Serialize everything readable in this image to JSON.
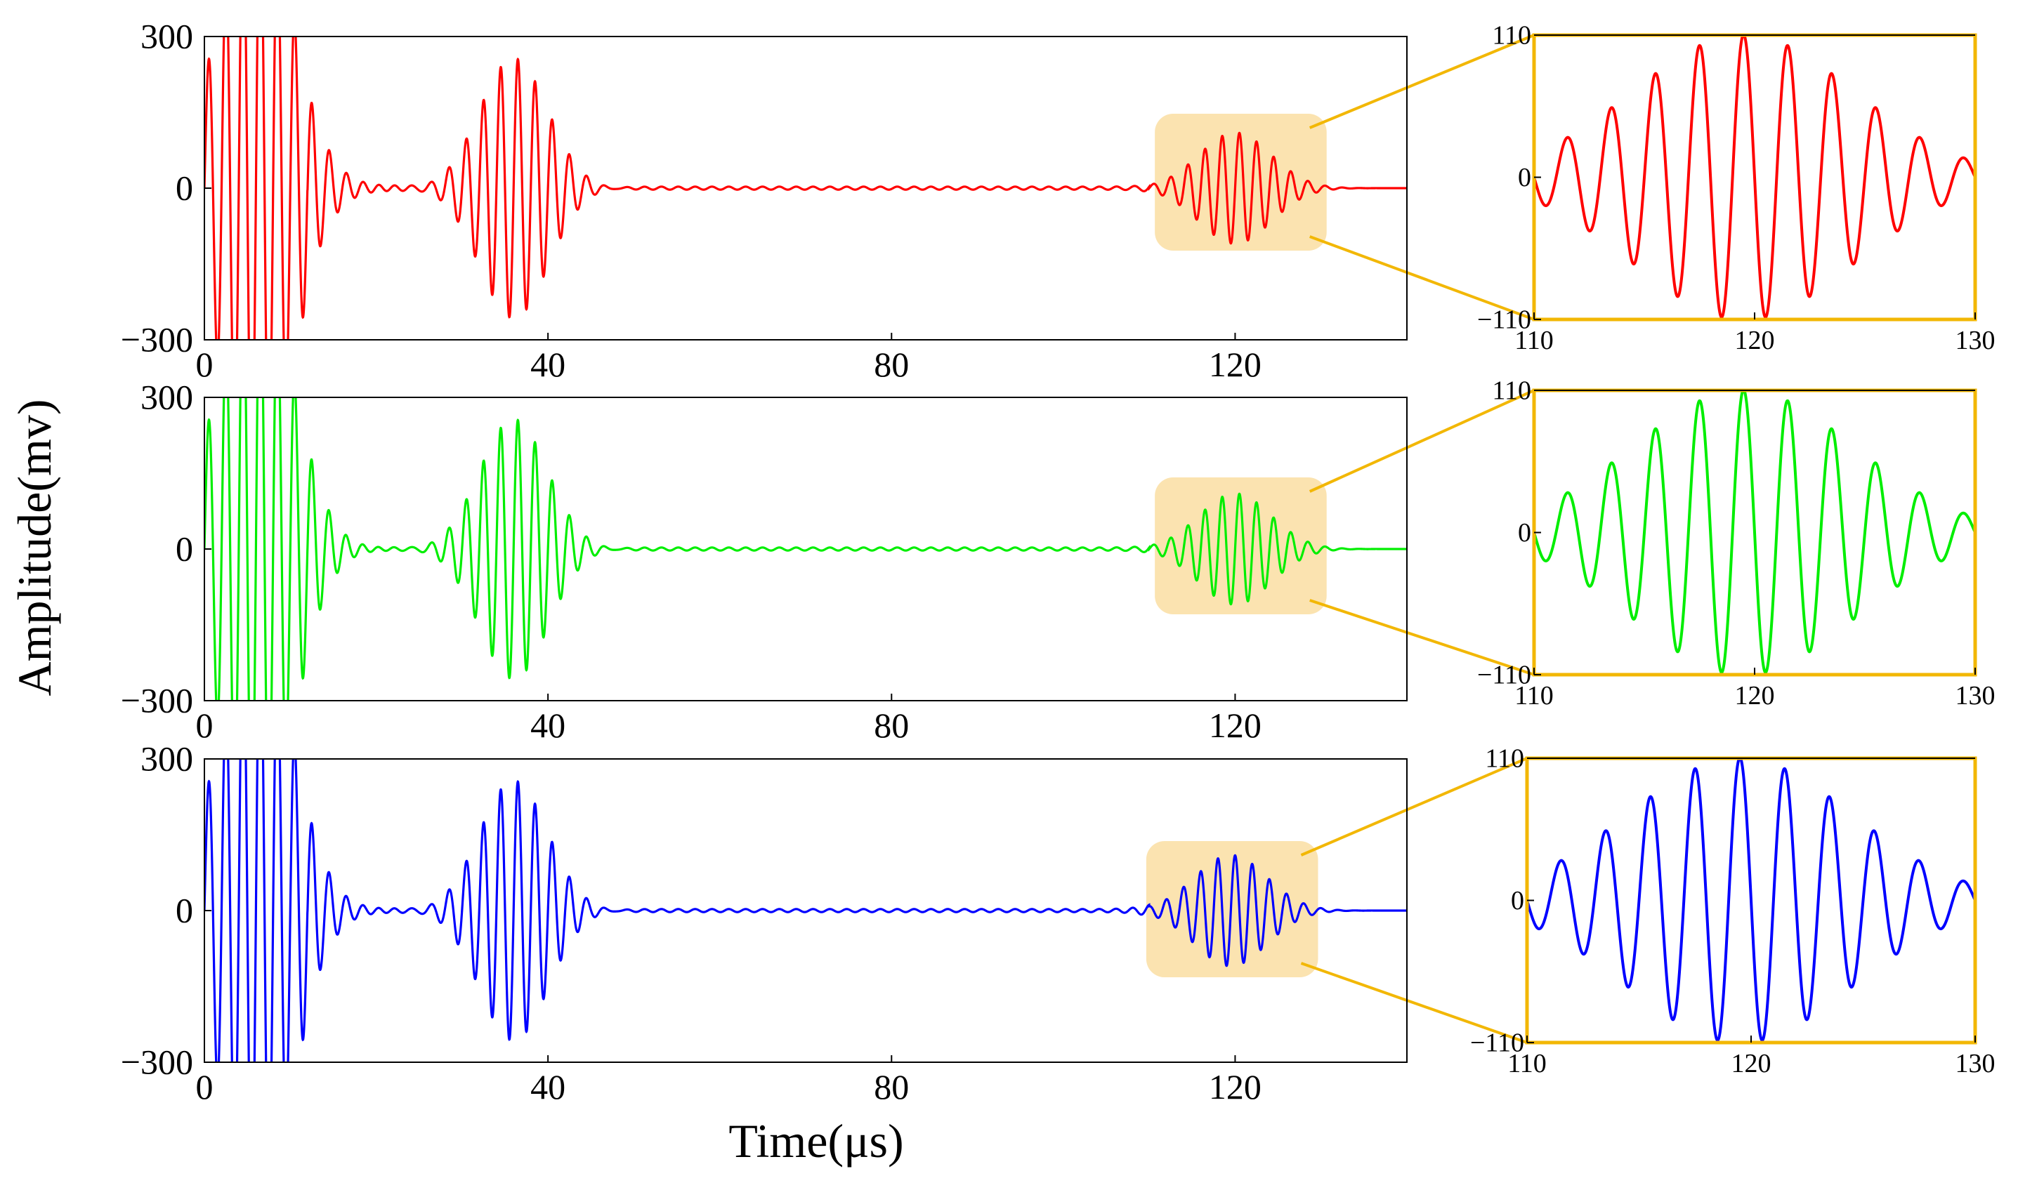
{
  "figure": {
    "ylabel": "Amplitude(mv)",
    "xlabel": "Time(μs)",
    "highlight_color": "#FBE3B0",
    "zoom_frame_color": "#F2B705"
  },
  "chart_data": [
    {
      "type": "line",
      "panel": "main-top",
      "series": [
        {
          "color": "#FF0000",
          "waveform": "ultrasonic echo signal"
        }
      ],
      "xlim": [
        0,
        140
      ],
      "ylim": [
        -300,
        300
      ],
      "xticks": [
        "0",
        "40",
        "80",
        "120"
      ],
      "yticks": [
        "300",
        "0",
        "−300"
      ],
      "xtick_values": [
        0,
        40,
        80,
        120
      ],
      "ytick_values": [
        300,
        0,
        -300
      ],
      "highlight_range": [
        110,
        130
      ],
      "pulses": [
        {
          "center": 6,
          "amplitude": 600,
          "sigma": 4.2
        },
        {
          "center": 36,
          "amplitude": 260,
          "sigma": 4.0
        },
        {
          "center": 120,
          "amplitude": 110,
          "sigma": 4.2
        }
      ],
      "ringing_amplitude": 20
    },
    {
      "type": "line",
      "panel": "zoom-top",
      "series": [
        {
          "color": "#FF0000"
        }
      ],
      "xlim": [
        110,
        130
      ],
      "ylim": [
        -110,
        110
      ],
      "xticks": [
        "110",
        "120",
        "130"
      ],
      "yticks": [
        "110",
        "0",
        "−110"
      ],
      "xtick_values": [
        110,
        120,
        130
      ],
      "ytick_values": [
        110,
        0,
        -110
      ]
    },
    {
      "type": "line",
      "panel": "main-middle",
      "series": [
        {
          "color": "#00EE00",
          "waveform": "ultrasonic echo signal"
        }
      ],
      "xlim": [
        0,
        140
      ],
      "ylim": [
        -300,
        300
      ],
      "xticks": [
        "0",
        "40",
        "80",
        "120"
      ],
      "yticks": [
        "300",
        "0",
        "−300"
      ],
      "xtick_values": [
        0,
        40,
        80,
        120
      ],
      "ytick_values": [
        300,
        0,
        -300
      ],
      "highlight_range": [
        110,
        130
      ],
      "pulses": [
        {
          "center": 6,
          "amplitude": 600,
          "sigma": 4.2
        },
        {
          "center": 36,
          "amplitude": 260,
          "sigma": 4.0
        },
        {
          "center": 120,
          "amplitude": 110,
          "sigma": 4.2
        }
      ],
      "ringing_amplitude": 8
    },
    {
      "type": "line",
      "panel": "zoom-middle",
      "series": [
        {
          "color": "#00EE00"
        }
      ],
      "xlim": [
        110,
        130
      ],
      "ylim": [
        -110,
        110
      ],
      "xticks": [
        "110",
        "120",
        "130"
      ],
      "yticks": [
        "110",
        "0",
        "−110"
      ],
      "xtick_values": [
        110,
        120,
        130
      ],
      "ytick_values": [
        110,
        0,
        -110
      ]
    },
    {
      "type": "line",
      "panel": "main-bottom",
      "series": [
        {
          "color": "#0000FF",
          "waveform": "ultrasonic echo signal"
        }
      ],
      "xlim": [
        0,
        140
      ],
      "ylim": [
        -300,
        300
      ],
      "xticks": [
        "0",
        "40",
        "80",
        "120"
      ],
      "yticks": [
        "300",
        "0",
        "−300"
      ],
      "xtick_values": [
        0,
        40,
        80,
        120
      ],
      "ytick_values": [
        300,
        0,
        -300
      ],
      "highlight_range": [
        109,
        129
      ],
      "pulses": [
        {
          "center": 6,
          "amplitude": 600,
          "sigma": 4.2
        },
        {
          "center": 36,
          "amplitude": 260,
          "sigma": 4.0
        },
        {
          "center": 119.5,
          "amplitude": 110,
          "sigma": 4.2
        }
      ],
      "ringing_amplitude": 14
    },
    {
      "type": "line",
      "panel": "zoom-bottom",
      "series": [
        {
          "color": "#0000FF"
        }
      ],
      "xlim": [
        110,
        130
      ],
      "ylim": [
        -110,
        110
      ],
      "xticks": [
        "110",
        "120",
        "130"
      ],
      "yticks": [
        "110",
        "0",
        "−110"
      ],
      "xtick_values": [
        110,
        120,
        130
      ],
      "ytick_values": [
        110,
        0,
        -110
      ]
    }
  ]
}
